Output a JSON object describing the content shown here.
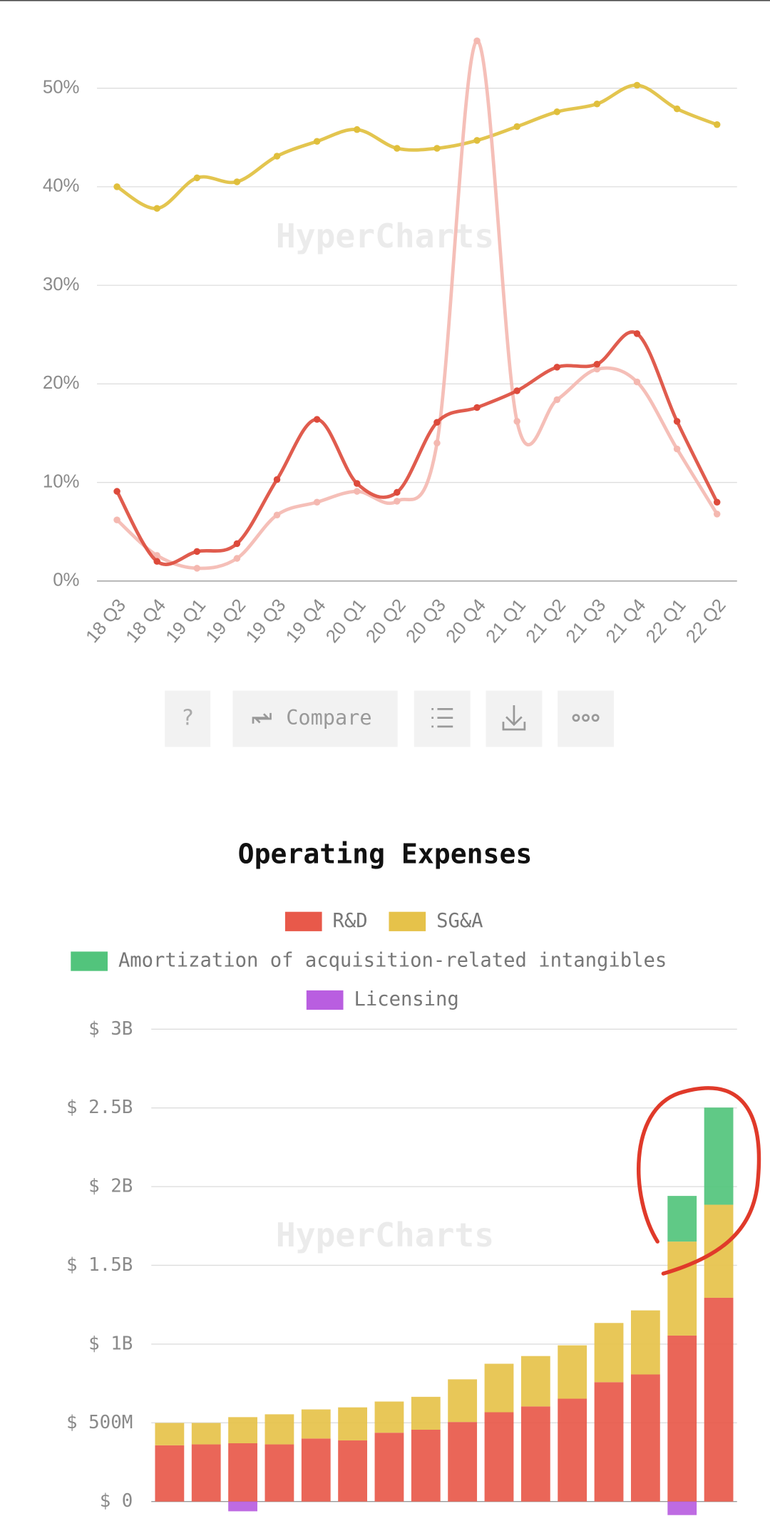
{
  "chart_data": [
    {
      "type": "line",
      "watermark": "HyperCharts",
      "categories": [
        "18 Q3",
        "18 Q4",
        "19 Q1",
        "19 Q2",
        "19 Q3",
        "19 Q4",
        "20 Q1",
        "20 Q2",
        "20 Q3",
        "20 Q4",
        "21 Q1",
        "21 Q2",
        "21 Q3",
        "21 Q4",
        "22 Q1",
        "22 Q2"
      ],
      "series": [
        {
          "color": "#e0bf3c",
          "values": [
            40,
            37.8,
            40.9,
            40.5,
            43.1,
            44.6,
            45.8,
            43.9,
            43.9,
            44.7,
            46.1,
            47.6,
            48.4,
            50.3,
            47.9,
            46.3
          ]
        },
        {
          "color": "#f4b8b0",
          "values": [
            6.2,
            2.6,
            1.3,
            2.3,
            6.7,
            8.0,
            9.1,
            8.1,
            14.0,
            54.8,
            16.2,
            18.4,
            21.5,
            20.2,
            13.4,
            6.8
          ]
        },
        {
          "color": "#dd4a3b",
          "values": [
            9.1,
            2.0,
            3.0,
            3.8,
            10.3,
            16.4,
            9.9,
            9.0,
            16.1,
            17.6,
            19.3,
            21.7,
            22.0,
            25.1,
            16.2,
            8.0
          ]
        }
      ],
      "ylim": [
        0,
        55
      ],
      "yticks": [
        {
          "value": 0,
          "label": "0%"
        },
        {
          "value": 10,
          "label": "10%"
        },
        {
          "value": 20,
          "label": "20%"
        },
        {
          "value": 30,
          "label": "30%"
        },
        {
          "value": 40,
          "label": "40%"
        },
        {
          "value": 50,
          "label": "50%"
        }
      ],
      "grid": true
    },
    {
      "type": "stacked_bar",
      "title": "Operating Expenses",
      "watermark": "HyperCharts",
      "categories": [
        null,
        null,
        null,
        null,
        null,
        null,
        null,
        null,
        null,
        null,
        null,
        null,
        null,
        null,
        null,
        null
      ],
      "series": [
        {
          "name": "R&D",
          "color": "#e8594a",
          "values": [
            357000000,
            363000000,
            370000000,
            363000000,
            400000000,
            388000000,
            437000000,
            456000000,
            505000000,
            567000000,
            604000000,
            653000000,
            758000000,
            807000000,
            1054000000,
            1294000000
          ]
        },
        {
          "name": "SG&A",
          "color": "#e6c24a",
          "values": [
            142000000,
            136000000,
            166000000,
            191000000,
            185000000,
            210000000,
            198000000,
            209000000,
            271000000,
            308000000,
            320000000,
            339000000,
            376000000,
            407000000,
            597000000,
            591000000
          ]
        },
        {
          "name": "Amortization of acquisition-related intangibles",
          "color": "#52c47c",
          "values": [
            0,
            0,
            0,
            0,
            0,
            0,
            0,
            0,
            0,
            0,
            0,
            0,
            0,
            0,
            290000000,
            617000000
          ]
        },
        {
          "name": "Licensing",
          "color": "#b95ee0",
          "values": [
            0,
            0,
            -62000000,
            0,
            0,
            0,
            0,
            0,
            0,
            0,
            0,
            0,
            0,
            0,
            -86000000,
            0
          ]
        }
      ],
      "ylim": [
        0,
        3000000000
      ],
      "yticks": [
        {
          "value": 0,
          "label": "$ 0"
        },
        {
          "value": 500000000,
          "label": "$ 500M"
        },
        {
          "value": 1000000000,
          "label": "$ 1B"
        },
        {
          "value": 1500000000,
          "label": "$ 1.5B"
        },
        {
          "value": 2000000000,
          "label": "$ 2B"
        },
        {
          "value": 2500000000,
          "label": "$ 2.5B"
        },
        {
          "value": 3000000000,
          "label": "$ 3B"
        }
      ],
      "grid": true
    }
  ],
  "toolbar": {
    "buttons": [
      "?",
      "Compare"
    ]
  }
}
